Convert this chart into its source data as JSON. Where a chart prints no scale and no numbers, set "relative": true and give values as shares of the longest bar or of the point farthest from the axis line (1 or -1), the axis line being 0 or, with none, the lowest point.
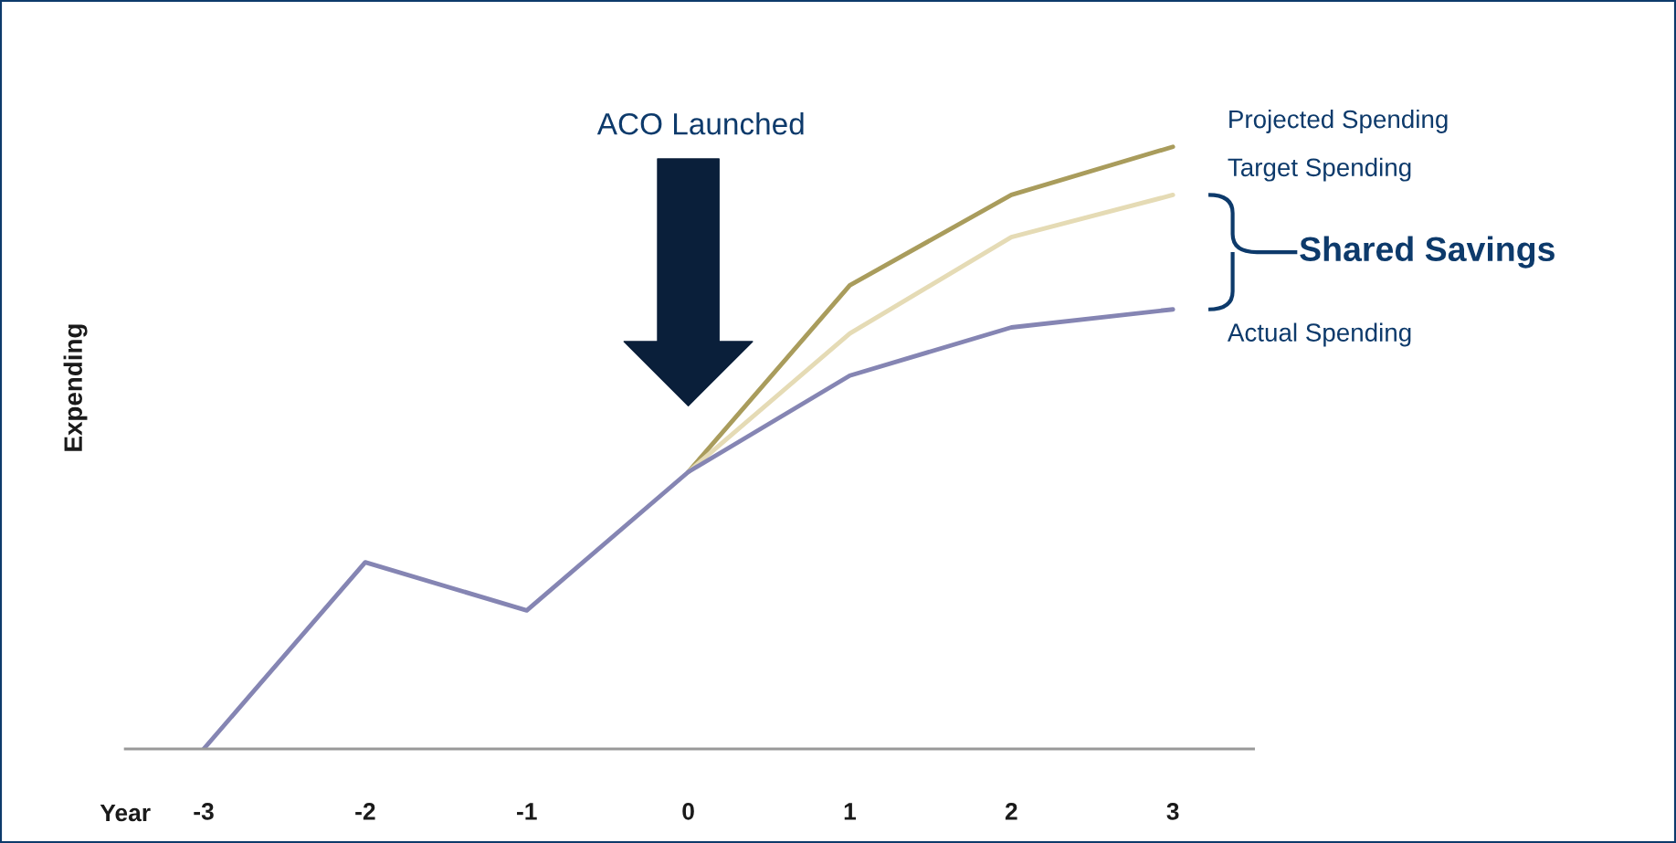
{
  "chart_data": {
    "type": "line",
    "relative": true,
    "ylabel": "Expending",
    "xlabel": "Year",
    "categories": [
      "-3",
      "-2",
      "-1",
      "0",
      "1",
      "2",
      "3"
    ],
    "series": [
      {
        "name": "Projected Spending",
        "color": "#a99c5c",
        "values": [
          null,
          null,
          null,
          0.46,
          0.77,
          0.92,
          1
        ]
      },
      {
        "name": "Target Spending",
        "color": "#e5dbb5",
        "values": [
          null,
          null,
          null,
          0.46,
          0.69,
          0.85,
          0.92
        ]
      },
      {
        "name": "Actual Spending",
        "color": "#8585b3",
        "values": [
          0,
          0.31,
          0.23,
          0.46,
          0.62,
          0.7,
          0.73
        ]
      }
    ],
    "annotations": [
      "ACO Launched",
      "Shared Savings"
    ],
    "legend": false,
    "grid": false,
    "marker": "none",
    "line_style": "solid"
  }
}
